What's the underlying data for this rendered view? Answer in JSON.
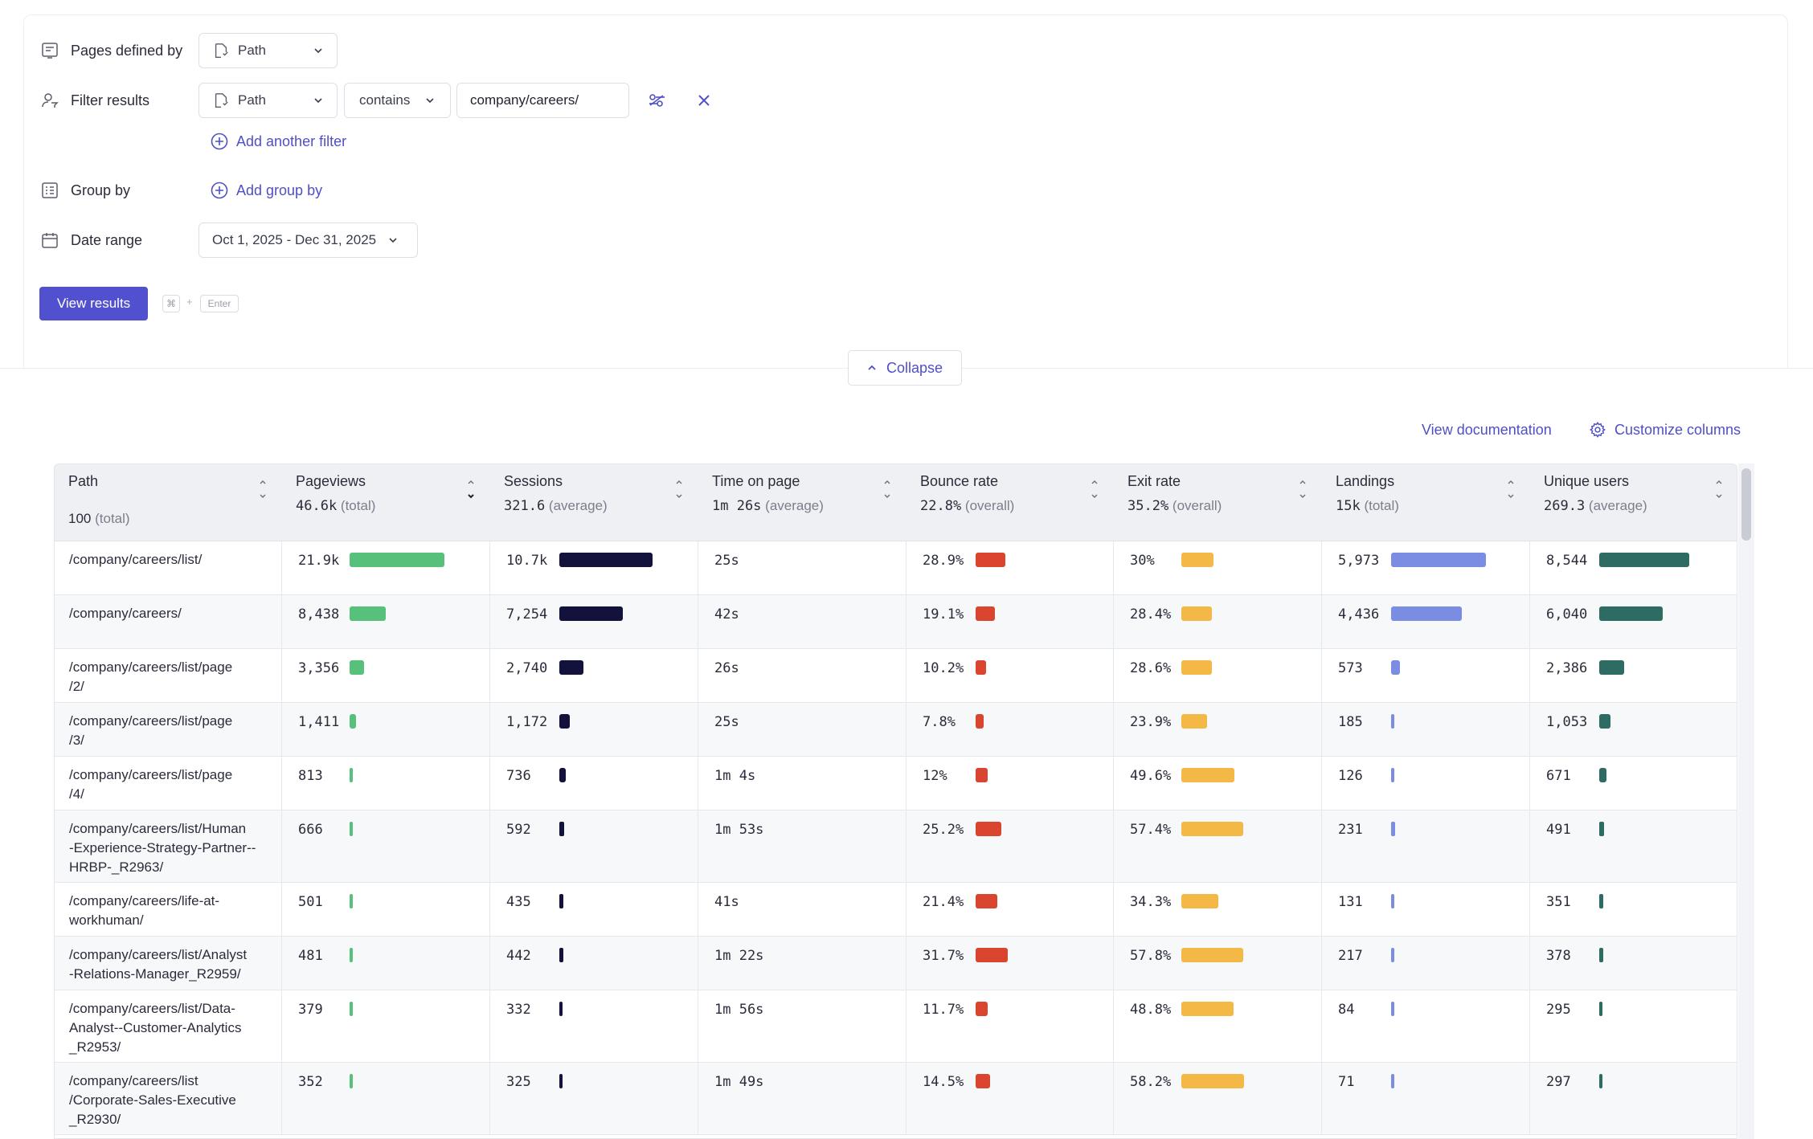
{
  "query": {
    "pages_defined_by": {
      "label": "Pages defined by",
      "value": "Path"
    },
    "filter": {
      "label": "Filter results",
      "field": "Path",
      "operator": "contains",
      "value": "company/careers/",
      "add_filter": "Add another filter"
    },
    "group_by": {
      "label": "Group by",
      "add_group": "Add group by"
    },
    "date_range": {
      "label": "Date range",
      "value": "Oct 1, 2025 - Dec 31, 2025"
    },
    "view_results": "View results",
    "shortcut": {
      "cmd": "⌘",
      "plus": "+",
      "enter": "Enter"
    },
    "collapse": "Collapse"
  },
  "links": {
    "documentation": "View documentation",
    "customize": "Customize columns"
  },
  "colors": {
    "accent": "#5151cf",
    "pageviews": "#57c07a",
    "sessions": "#13123d",
    "bounce": "#d9452e",
    "exit": "#f4b847",
    "landings": "#7b8de3",
    "unique": "#2d6b63"
  },
  "columns": [
    {
      "title": "Path",
      "summary": "100",
      "summary_note": "(total)"
    },
    {
      "title": "Pageviews",
      "summary": "46.6k",
      "summary_note": "(total)"
    },
    {
      "title": "Sessions",
      "summary": "321.6",
      "summary_note": "(average)"
    },
    {
      "title": "Time on page",
      "summary": "1m 26s",
      "summary_note": "(average)"
    },
    {
      "title": "Bounce rate",
      "summary": "22.8%",
      "summary_note": "(overall)"
    },
    {
      "title": "Exit rate",
      "summary": "35.2%",
      "summary_note": "(overall)"
    },
    {
      "title": "Landings",
      "summary": "15k",
      "summary_note": "(total)"
    },
    {
      "title": "Unique users",
      "summary": "269.3",
      "summary_note": "(average)"
    }
  ],
  "rows": [
    {
      "path": "/company/careers/list/",
      "pageviews": "21.9k",
      "pageviews_n": 21900,
      "sessions": "10.7k",
      "sessions_n": 10700,
      "time": "25s",
      "bounce": "28.9%",
      "bounce_n": 28.9,
      "exit": "30%",
      "exit_n": 30,
      "landings": "5,973",
      "landings_n": 5973,
      "unique": "8,544",
      "unique_n": 8544
    },
    {
      "path": "/company/careers/",
      "pageviews": "8,438",
      "pageviews_n": 8438,
      "sessions": "7,254",
      "sessions_n": 7254,
      "time": "42s",
      "bounce": "19.1%",
      "bounce_n": 19.1,
      "exit": "28.4%",
      "exit_n": 28.4,
      "landings": "4,436",
      "landings_n": 4436,
      "unique": "6,040",
      "unique_n": 6040
    },
    {
      "path": "/company/careers/list/page\n/2/",
      "pageviews": "3,356",
      "pageviews_n": 3356,
      "sessions": "2,740",
      "sessions_n": 2740,
      "time": "26s",
      "bounce": "10.2%",
      "bounce_n": 10.2,
      "exit": "28.6%",
      "exit_n": 28.6,
      "landings": "573",
      "landings_n": 573,
      "unique": "2,386",
      "unique_n": 2386
    },
    {
      "path": "/company/careers/list/page\n/3/",
      "pageviews": "1,411",
      "pageviews_n": 1411,
      "sessions": "1,172",
      "sessions_n": 1172,
      "time": "25s",
      "bounce": "7.8%",
      "bounce_n": 7.8,
      "exit": "23.9%",
      "exit_n": 23.9,
      "landings": "185",
      "landings_n": 185,
      "unique": "1,053",
      "unique_n": 1053
    },
    {
      "path": "/company/careers/list/page\n/4/",
      "pageviews": "813",
      "pageviews_n": 813,
      "sessions": "736",
      "sessions_n": 736,
      "time": "1m  4s",
      "bounce": "12%",
      "bounce_n": 12,
      "exit": "49.6%",
      "exit_n": 49.6,
      "landings": "126",
      "landings_n": 126,
      "unique": "671",
      "unique_n": 671
    },
    {
      "path": "/company/careers/list/Human\n-Experience-Strategy-Partner--\nHRBP-_R2963/",
      "pageviews": "666",
      "pageviews_n": 666,
      "sessions": "592",
      "sessions_n": 592,
      "time": "1m  53s",
      "bounce": "25.2%",
      "bounce_n": 25.2,
      "exit": "57.4%",
      "exit_n": 57.4,
      "landings": "231",
      "landings_n": 231,
      "unique": "491",
      "unique_n": 491
    },
    {
      "path": "/company/careers/life-at-\nworkhuman/",
      "pageviews": "501",
      "pageviews_n": 501,
      "sessions": "435",
      "sessions_n": 435,
      "time": "41s",
      "bounce": "21.4%",
      "bounce_n": 21.4,
      "exit": "34.3%",
      "exit_n": 34.3,
      "landings": "131",
      "landings_n": 131,
      "unique": "351",
      "unique_n": 351
    },
    {
      "path": "/company/careers/list/Analyst\n-Relations-Manager_R2959/",
      "pageviews": "481",
      "pageviews_n": 481,
      "sessions": "442",
      "sessions_n": 442,
      "time": "1m  22s",
      "bounce": "31.7%",
      "bounce_n": 31.7,
      "exit": "57.8%",
      "exit_n": 57.8,
      "landings": "217",
      "landings_n": 217,
      "unique": "378",
      "unique_n": 378
    },
    {
      "path": "/company/careers/list/Data-\nAnalyst--Customer-Analytics\n_R2953/",
      "pageviews": "379",
      "pageviews_n": 379,
      "sessions": "332",
      "sessions_n": 332,
      "time": "1m  56s",
      "bounce": "11.7%",
      "bounce_n": 11.7,
      "exit": "48.8%",
      "exit_n": 48.8,
      "landings": "84",
      "landings_n": 84,
      "unique": "295",
      "unique_n": 295
    },
    {
      "path": "/company/careers/list\n/Corporate-Sales-Executive\n_R2930/",
      "pageviews": "352",
      "pageviews_n": 352,
      "sessions": "325",
      "sessions_n": 325,
      "time": "1m  49s",
      "bounce": "14.5%",
      "bounce_n": 14.5,
      "exit": "58.2%",
      "exit_n": 58.2,
      "landings": "71",
      "landings_n": 71,
      "unique": "297",
      "unique_n": 297
    }
  ]
}
